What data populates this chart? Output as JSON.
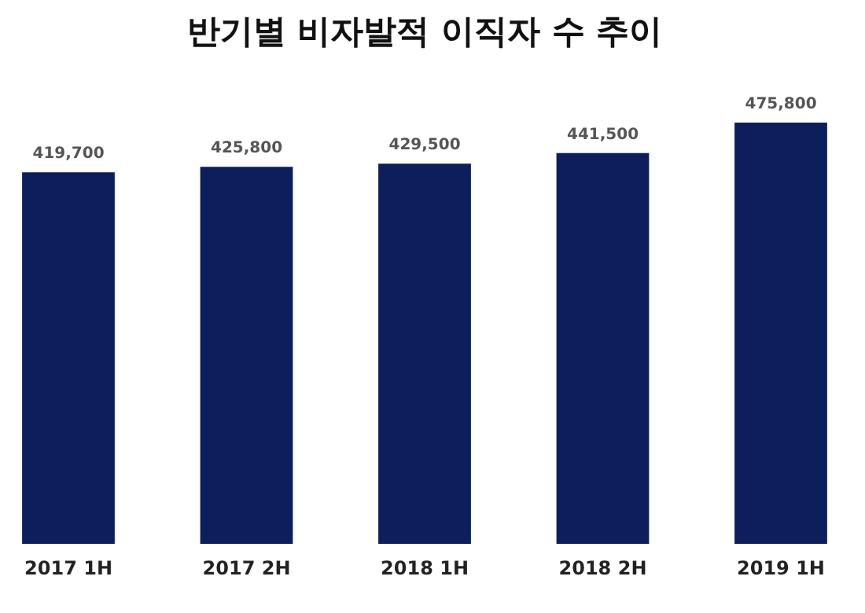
{
  "chart_data": {
    "type": "bar",
    "title": "반기별 비자발적 이직자 수 추이",
    "categories": [
      "2017 1H",
      "2017 2H",
      "2018 1H",
      "2018 2H",
      "2019 1H"
    ],
    "values": [
      419700,
      425800,
      429500,
      441500,
      475800
    ],
    "value_labels": [
      "419,700",
      "425,800",
      "429,500",
      "441,500",
      "475,800"
    ],
    "color": "#0c1f5c",
    "tick_labels": "x",
    "grid": false
  }
}
